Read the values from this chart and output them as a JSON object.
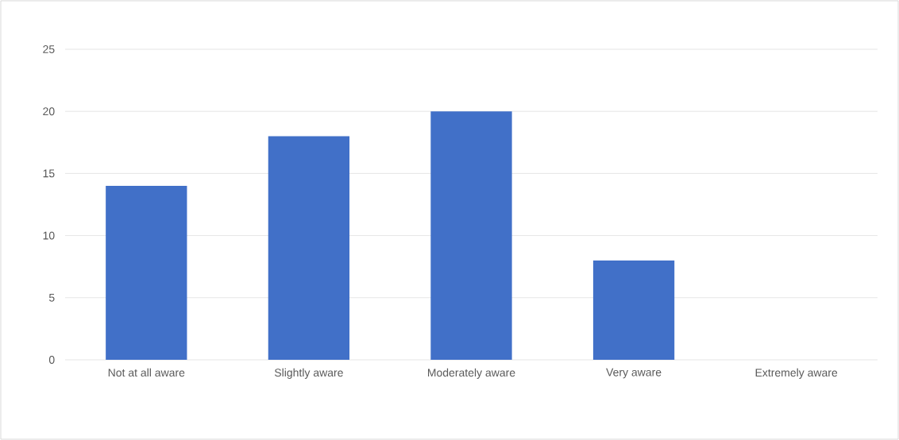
{
  "chart_data": {
    "type": "bar",
    "categories": [
      "Not at all aware",
      "Slightly aware",
      "Moderately aware",
      "Very aware",
      "Extremely aware"
    ],
    "values": [
      14,
      18,
      20,
      8,
      0
    ],
    "color": "#4170c8",
    "ylim": [
      0,
      25
    ],
    "yticks": [
      0,
      5,
      10,
      15,
      20,
      25
    ],
    "grid": "y"
  }
}
